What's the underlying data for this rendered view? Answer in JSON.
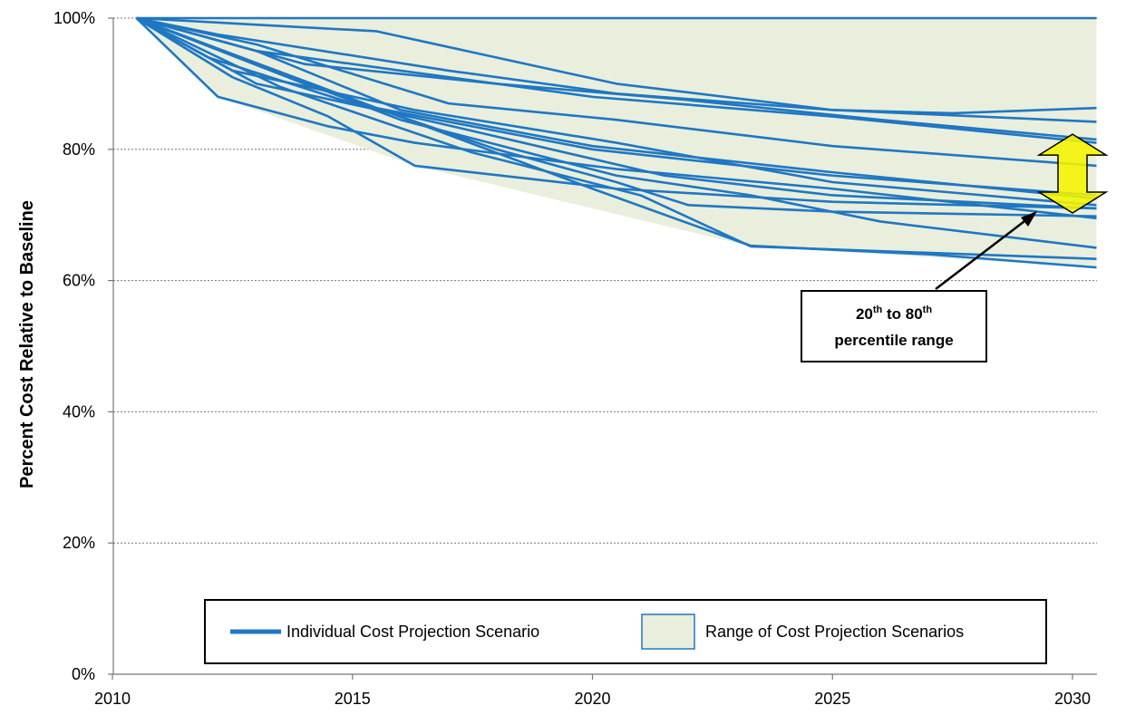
{
  "chart_data": {
    "type": "line",
    "ylabel": "Percent Cost Relative to Baseline",
    "xlabel": "",
    "xlim": [
      2010,
      2030
    ],
    "ylim": [
      0,
      100
    ],
    "x_ticks": [
      2010,
      2015,
      2020,
      2025,
      2030
    ],
    "x_tick_labels": [
      "2010",
      "2015",
      "2020",
      "2025",
      "2030"
    ],
    "y_ticks": [
      0,
      20,
      40,
      60,
      80,
      100
    ],
    "y_tick_labels": [
      "0%",
      "20%",
      "40%",
      "60%",
      "80%",
      "100%"
    ],
    "grid": "horizontal dotted",
    "series": [
      {
        "x": [
          2010.5,
          2030.5
        ],
        "y": [
          100,
          100
        ]
      },
      {
        "x": [
          2010.5,
          2015.5,
          2020.5,
          2025,
          2027.5,
          2030.5
        ],
        "y": [
          100,
          98,
          90,
          86,
          85.5,
          86.3
        ]
      },
      {
        "x": [
          2010.5,
          2012.2,
          2017,
          2020.5,
          2025,
          2030.5
        ],
        "y": [
          100,
          97.5,
          92,
          88.5,
          86,
          84.2
        ]
      },
      {
        "x": [
          2010.5,
          2014,
          2018,
          2022,
          2026,
          2030.5
        ],
        "y": [
          100,
          93,
          90,
          87.5,
          84.5,
          81.5
        ]
      },
      {
        "x": [
          2010.5,
          2013,
          2016,
          2020,
          2025,
          2030.5
        ],
        "y": [
          100,
          95,
          92,
          88,
          85,
          81
        ]
      },
      {
        "x": [
          2010.5,
          2013,
          2017,
          2020.5,
          2025,
          2030.5
        ],
        "y": [
          100,
          96,
          87,
          84.5,
          80.5,
          77.5
        ]
      },
      {
        "x": [
          2010.5,
          2013,
          2016,
          2020,
          2025,
          2030.5
        ],
        "y": [
          100,
          95,
          86,
          80.5,
          76.5,
          72.5
        ]
      },
      {
        "x": [
          2010.5,
          2012,
          2015,
          2020,
          2025,
          2030.5
        ],
        "y": [
          100,
          94,
          87,
          80,
          76,
          73
        ]
      },
      {
        "x": [
          2010.5,
          2012.5,
          2016.3,
          2020.5,
          2025,
          2030.5
        ],
        "y": [
          100,
          92,
          86,
          81,
          75,
          71.5
        ]
      },
      {
        "x": [
          2010.5,
          2013,
          2016.5,
          2021.5,
          2025,
          2030.5
        ],
        "y": [
          100,
          90,
          84.5,
          76,
          73,
          71
        ]
      },
      {
        "x": [
          2010.5,
          2012.2,
          2014.5,
          2016.3,
          2020.5,
          2025,
          2030.5
        ],
        "y": [
          100,
          88,
          83.5,
          81,
          77,
          74,
          69.5
        ]
      },
      {
        "x": [
          2010.5,
          2012.5,
          2014.5,
          2016.3,
          2020.5,
          2025,
          2030.5
        ],
        "y": [
          100,
          91,
          85,
          77.5,
          74,
          72,
          71
        ]
      },
      {
        "x": [
          2010.5,
          2014,
          2018,
          2020.5,
          2022,
          2025,
          2030.5
        ],
        "y": [
          100,
          90,
          80,
          75,
          71.5,
          70.5,
          69.8
        ]
      },
      {
        "x": [
          2010.5,
          2013,
          2016,
          2020.5,
          2023.3,
          2026,
          2030.5
        ],
        "y": [
          100,
          93,
          84.5,
          76,
          73,
          69,
          65
        ]
      },
      {
        "x": [
          2010.5,
          2013.5,
          2017.5,
          2021,
          2023.3,
          2030.5
        ],
        "y": [
          100,
          89.5,
          79.5,
          73,
          65.2,
          63.3
        ]
      },
      {
        "x": [
          2010.5,
          2020,
          2023.3,
          2027,
          2030.5
        ],
        "y": [
          100,
          74,
          65.3,
          64,
          62
        ]
      }
    ],
    "range_band": {
      "x": [
        2010.5,
        2012.2,
        2016.3,
        2023.3,
        2030.5
      ],
      "lower": [
        100,
        88,
        77.5,
        65.2,
        62
      ],
      "upper": [
        100,
        100,
        100,
        100,
        100
      ]
    },
    "percentile_range": {
      "x": 2030,
      "low": 70.3,
      "high": 82.3
    },
    "legend": {
      "position": "bottom-center",
      "entries": [
        {
          "label": "Individual Cost Projection Scenario",
          "kind": "line"
        },
        {
          "label": "Range of Cost Projection Scenarios",
          "kind": "fill"
        }
      ]
    },
    "annotation": {
      "line1_a": "20",
      "line1_a_sup": "th",
      "line1_b": " to 80",
      "line1_b_sup": "th",
      "line2": "percentile range"
    },
    "colors": {
      "line": "#1f77c4",
      "fill": "#e9efdc",
      "arrow_fill": "#f5f500",
      "arrow_stroke": "#000000",
      "grid": "#777777"
    }
  }
}
